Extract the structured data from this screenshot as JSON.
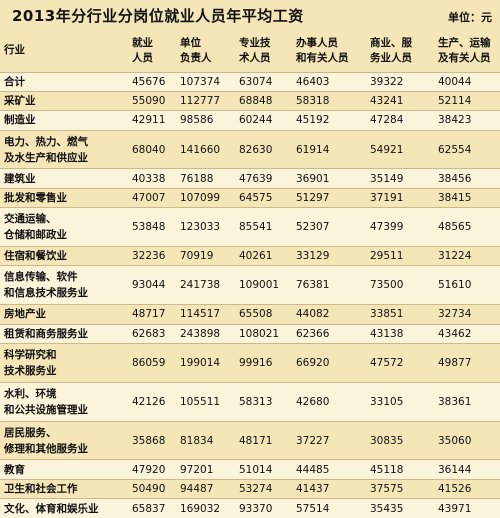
{
  "title": "2013年分行业分岗位就业人员年平均工资",
  "unit": "单位：元",
  "headers": {
    "industry": "行业",
    "cols": [
      [
        "就业",
        "人员"
      ],
      [
        "单位",
        "负责人"
      ],
      [
        "专业技",
        "术人员"
      ],
      [
        "办事人员",
        "和有关人员"
      ],
      [
        "商业、服",
        "务业人员"
      ],
      [
        "生产、运输",
        "及有关人员"
      ]
    ]
  },
  "rows": [
    {
      "name": [
        "合计"
      ],
      "values": [
        "45676",
        "107374",
        "63074",
        "46403",
        "39322",
        "40044"
      ]
    },
    {
      "name": [
        "采矿业"
      ],
      "values": [
        "55090",
        "112777",
        "68848",
        "58318",
        "43241",
        "52114"
      ]
    },
    {
      "name": [
        "制造业"
      ],
      "values": [
        "42911",
        "98586",
        "60244",
        "45192",
        "47284",
        "38423"
      ]
    },
    {
      "name": [
        "电力、热力、燃气",
        "及水生产和供应业"
      ],
      "values": [
        "68040",
        "141660",
        "82630",
        "61914",
        "54921",
        "62554"
      ]
    },
    {
      "name": [
        "建筑业"
      ],
      "values": [
        "40338",
        "76188",
        "47639",
        "36901",
        "35149",
        "38456"
      ]
    },
    {
      "name": [
        "批发和零售业"
      ],
      "values": [
        "47007",
        "107099",
        "64575",
        "51297",
        "37191",
        "38415"
      ]
    },
    {
      "name": [
        "交通运输、",
        "仓储和邮政业"
      ],
      "values": [
        "53848",
        "123033",
        "85541",
        "52307",
        "47399",
        "48565"
      ]
    },
    {
      "name": [
        "住宿和餐饮业"
      ],
      "values": [
        "32236",
        "70919",
        "40261",
        "33129",
        "29511",
        "31224"
      ]
    },
    {
      "name": [
        "信息传输、软件",
        "和信息技术服务业"
      ],
      "values": [
        "93044",
        "241738",
        "109001",
        "76381",
        "73500",
        "51610"
      ]
    },
    {
      "name": [
        "房地产业"
      ],
      "values": [
        "48717",
        "114517",
        "65508",
        "44082",
        "33851",
        "32734"
      ]
    },
    {
      "name": [
        "租赁和商务服务业"
      ],
      "values": [
        "62683",
        "243898",
        "108021",
        "62366",
        "43138",
        "43462"
      ]
    },
    {
      "name": [
        "科学研究和",
        "技术服务业"
      ],
      "values": [
        "86059",
        "199014",
        "99916",
        "66920",
        "47572",
        "49877"
      ]
    },
    {
      "name": [
        "水利、环境",
        "和公共设施管理业"
      ],
      "values": [
        "42126",
        "105511",
        "58313",
        "42680",
        "33105",
        "38361"
      ]
    },
    {
      "name": [
        "居民服务、",
        "修理和其他服务业"
      ],
      "values": [
        "35868",
        "81834",
        "48171",
        "37227",
        "30835",
        "35060"
      ]
    },
    {
      "name": [
        "教育"
      ],
      "values": [
        "47920",
        "97201",
        "51014",
        "44485",
        "45118",
        "36144"
      ]
    },
    {
      "name": [
        "卫生和社会工作"
      ],
      "values": [
        "50490",
        "94487",
        "53274",
        "41437",
        "37575",
        "41526"
      ]
    },
    {
      "name": [
        "文化、体育和娱乐业"
      ],
      "values": [
        "65837",
        "169032",
        "93370",
        "57514",
        "35435",
        "43971"
      ]
    }
  ]
}
